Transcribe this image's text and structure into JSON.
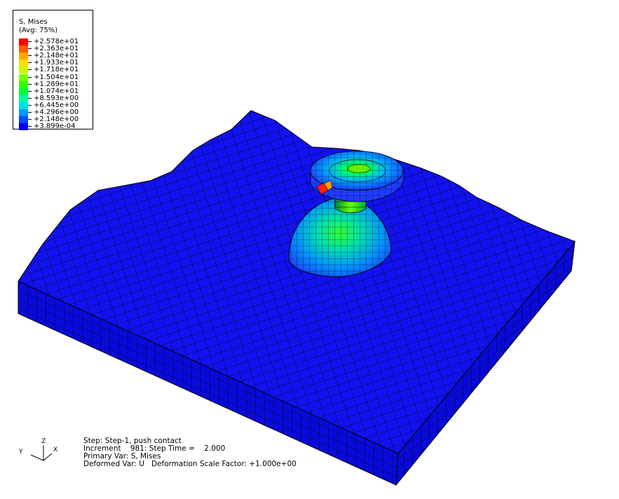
{
  "legend": {
    "title": "S, Mises",
    "subtitle": "(Avg: 75%)",
    "entries": [
      {
        "value": "+2.578e+01",
        "color": "#ff0000"
      },
      {
        "value": "+2.363e+01",
        "color": "#ff5a00"
      },
      {
        "value": "+2.148e+01",
        "color": "#ffa800"
      },
      {
        "value": "+1.933e+01",
        "color": "#ffe000"
      },
      {
        "value": "+1.718e+01",
        "color": "#c8ff00"
      },
      {
        "value": "+1.504e+01",
        "color": "#78ff00"
      },
      {
        "value": "+1.289e+01",
        "color": "#32ff00"
      },
      {
        "value": "+1.074e+01",
        "color": "#00ff3c"
      },
      {
        "value": "+8.593e+00",
        "color": "#00ff9a"
      },
      {
        "value": "+6.445e+00",
        "color": "#00e0e6"
      },
      {
        "value": "+4.296e+00",
        "color": "#0096ff"
      },
      {
        "value": "+2.148e+00",
        "color": "#004aff"
      },
      {
        "value": "+3.899e-04",
        "color": "#0000ff"
      }
    ]
  },
  "info": {
    "step": "Step: Step-1, push contact",
    "increment": "Increment    981: Step Time =    2.000",
    "primary_var": "Primary Var: S, Mises",
    "deformed_var": "Deformed Var: U   Deformation Scale Factor: +1.000e+00"
  },
  "triad": {
    "z": "Z",
    "y": "Y",
    "x": "X"
  },
  "colors": {
    "plate_top": "#1212f0",
    "plate_side": "#0a0adc",
    "mesh_line": "#000000"
  }
}
